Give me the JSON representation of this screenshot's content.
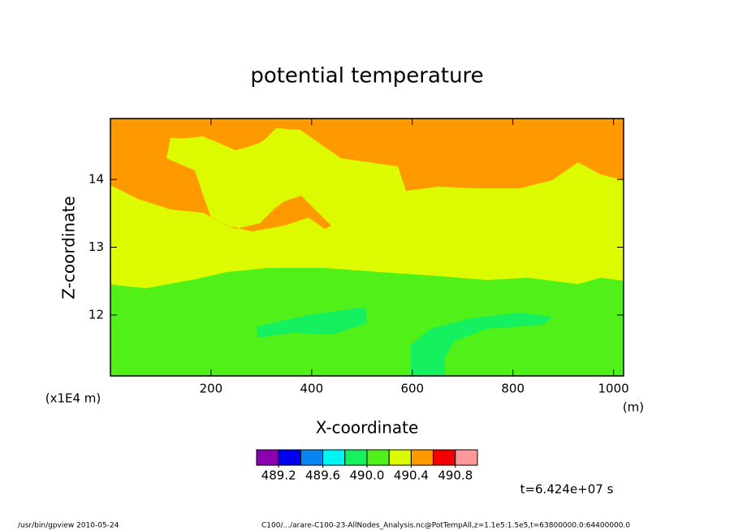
{
  "chart_data": {
    "type": "contourf",
    "title": "potential temperature",
    "x_label": "X-coordinate",
    "x_unit": "(m)",
    "y_label": "Z-coordinate",
    "y_unit": "(x1E4 m)",
    "xlim": [
      0,
      1020
    ],
    "xticks": [
      200,
      400,
      600,
      800,
      1000
    ],
    "ylim": [
      11.1,
      14.9
    ],
    "yticks": [
      12,
      13,
      14
    ],
    "colorbar": {
      "lim": [
        489.0,
        491.0
      ],
      "colors": [
        "#8a00b0",
        "#0000f0",
        "#0a84f0",
        "#00f5f5",
        "#14f060",
        "#50f018",
        "#dcfa00",
        "#ff9900",
        "#f50000",
        "#ff9999"
      ],
      "ticks": [
        489.2,
        489.6,
        {
          "value": 490,
          "label": "490.0"
        },
        490.4,
        490.8
      ]
    },
    "time_label": "t=6.424e+07 s",
    "footer_left": "/usr/bin/gpview   2010-05-24",
    "footer_right": "C100/.../arare-C100-23-AllNodes_Analysis.nc@PotTempAll,z=1.1e5:1.5e5,t=63800000.0:64400000.0"
  }
}
